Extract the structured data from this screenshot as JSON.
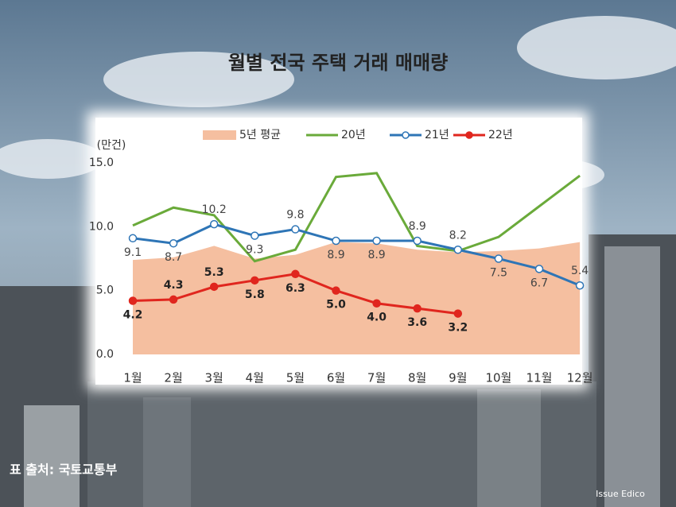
{
  "chart_data": {
    "type": "line",
    "title": "월별 전국 주택 거래 매매량",
    "y_label": "(만건)",
    "categories": [
      "1월",
      "2월",
      "3월",
      "4월",
      "5월",
      "6월",
      "7월",
      "8월",
      "9월",
      "10월",
      "11월",
      "12월"
    ],
    "series": [
      {
        "name": "5년 평균",
        "kind": "area",
        "color": "#f5bfa0",
        "values": [
          7.4,
          7.6,
          8.5,
          7.5,
          7.8,
          8.8,
          8.7,
          8.2,
          8.0,
          8.1,
          8.3,
          8.8
        ]
      },
      {
        "name": "20년",
        "kind": "line",
        "color": "#6aaa3a",
        "values": [
          10.1,
          11.5,
          10.9,
          7.3,
          8.2,
          13.9,
          14.2,
          8.5,
          8.1,
          9.2,
          11.6,
          14.0
        ]
      },
      {
        "name": "21년",
        "kind": "line",
        "marker": "hollow",
        "color": "#2e75b6",
        "values": [
          9.1,
          8.7,
          10.2,
          9.3,
          9.8,
          8.9,
          8.9,
          8.9,
          8.2,
          7.5,
          6.7,
          5.4
        ],
        "value_labels": [
          "9.1",
          "8.7",
          "10.2",
          "9.3",
          "9.8",
          "8.9",
          "8.9",
          "8.9",
          "8.2",
          "7.5",
          "6.7",
          "5.4"
        ]
      },
      {
        "name": "22년",
        "kind": "line",
        "marker": "filled",
        "color": "#e0261e",
        "values": [
          4.2,
          4.3,
          5.3,
          5.8,
          6.3,
          5.0,
          4.0,
          3.6,
          3.2,
          null,
          null,
          null
        ],
        "value_labels": [
          "4.2",
          "4.3",
          "5.3",
          "5.8",
          "6.3",
          "5.0",
          "4.0",
          "3.6",
          "3.2",
          null,
          null,
          null
        ]
      }
    ],
    "ylim": [
      0,
      15
    ],
    "yticks": [
      {
        "value": 0,
        "label": "0.0"
      },
      {
        "value": 5,
        "label": "5.0"
      },
      {
        "value": 10,
        "label": "10.0"
      },
      {
        "value": 15,
        "label": "15.0"
      }
    ],
    "grid": false
  },
  "source": "표 출처: 국토교통부",
  "watermark": "Issue Edico"
}
